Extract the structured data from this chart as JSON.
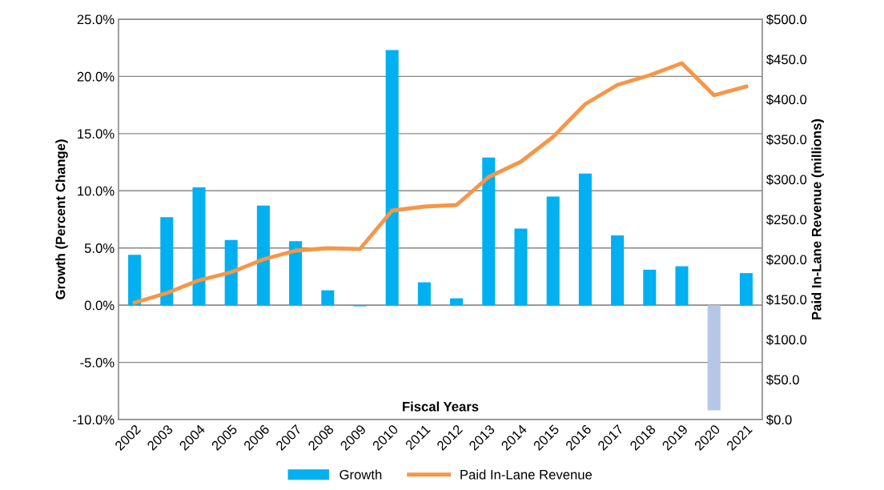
{
  "chart_data": {
    "type": "bar",
    "xlabel": "Fiscal Years",
    "ylabel": "Growth (Percent Change)",
    "y2label": "Paid In-Lane Revenue (millions)",
    "categories": [
      "2002",
      "2003",
      "2004",
      "2005",
      "2006",
      "2007",
      "2008",
      "2009",
      "2010",
      "2011",
      "2012",
      "2013",
      "2014",
      "2015",
      "2016",
      "2017",
      "2018",
      "2019",
      "2020",
      "2021"
    ],
    "series": [
      {
        "name": "Growth",
        "color": "#00b0f0",
        "colors": [
          "#00b0f0",
          "#00b0f0",
          "#00b0f0",
          "#00b0f0",
          "#00b0f0",
          "#00b0f0",
          "#00b0f0",
          "#00b0f0",
          "#00b0f0",
          "#00b0f0",
          "#00b0f0",
          "#00b0f0",
          "#00b0f0",
          "#00b0f0",
          "#00b0f0",
          "#00b0f0",
          "#00b0f0",
          "#00b0f0",
          "#b4c7e7",
          "#00b0f0"
        ],
        "values": [
          4.4,
          7.7,
          10.3,
          5.7,
          8.7,
          5.6,
          1.3,
          -0.1,
          22.3,
          2.0,
          0.6,
          12.9,
          6.7,
          9.5,
          11.5,
          6.1,
          3.1,
          3.4,
          -9.2,
          2.8
        ]
      },
      {
        "name": "Paid In-Lane Revenue",
        "type": "line",
        "axis": "y2",
        "color": "#f79646",
        "values": [
          146,
          158,
          174,
          184,
          200,
          211,
          214,
          213,
          261,
          266,
          268,
          303,
          322,
          353,
          394,
          418,
          430,
          445,
          405,
          416
        ]
      }
    ],
    "ylim": [
      -10,
      25
    ],
    "yticks": [
      {
        "value": -10,
        "label": "-10.0%"
      },
      {
        "value": -5,
        "label": "-5.0%"
      },
      {
        "value": 0,
        "label": "0.0%"
      },
      {
        "value": 5,
        "label": "5.0%"
      },
      {
        "value": 10,
        "label": "10.0%"
      },
      {
        "value": 15,
        "label": "15.0%"
      },
      {
        "value": 20,
        "label": "20.0%"
      },
      {
        "value": 25,
        "label": "25.0%"
      }
    ],
    "y2lim": [
      0,
      500
    ],
    "y2ticks": [
      {
        "value": 0,
        "label": "$0.0"
      },
      {
        "value": 50,
        "label": "$50.0"
      },
      {
        "value": 100,
        "label": "$100.0"
      },
      {
        "value": 150,
        "label": "$150.0"
      },
      {
        "value": 200,
        "label": "$200.0"
      },
      {
        "value": 250,
        "label": "$250.0"
      },
      {
        "value": 300,
        "label": "$300.0"
      },
      {
        "value": 350,
        "label": "$350.0"
      },
      {
        "value": 400,
        "label": "$400.0"
      },
      {
        "value": 450,
        "label": "$450.0"
      },
      {
        "value": 500,
        "label": "$500.0"
      }
    ],
    "grid": "y",
    "legend": "bottom",
    "marker": "none",
    "line_style": "solid"
  }
}
